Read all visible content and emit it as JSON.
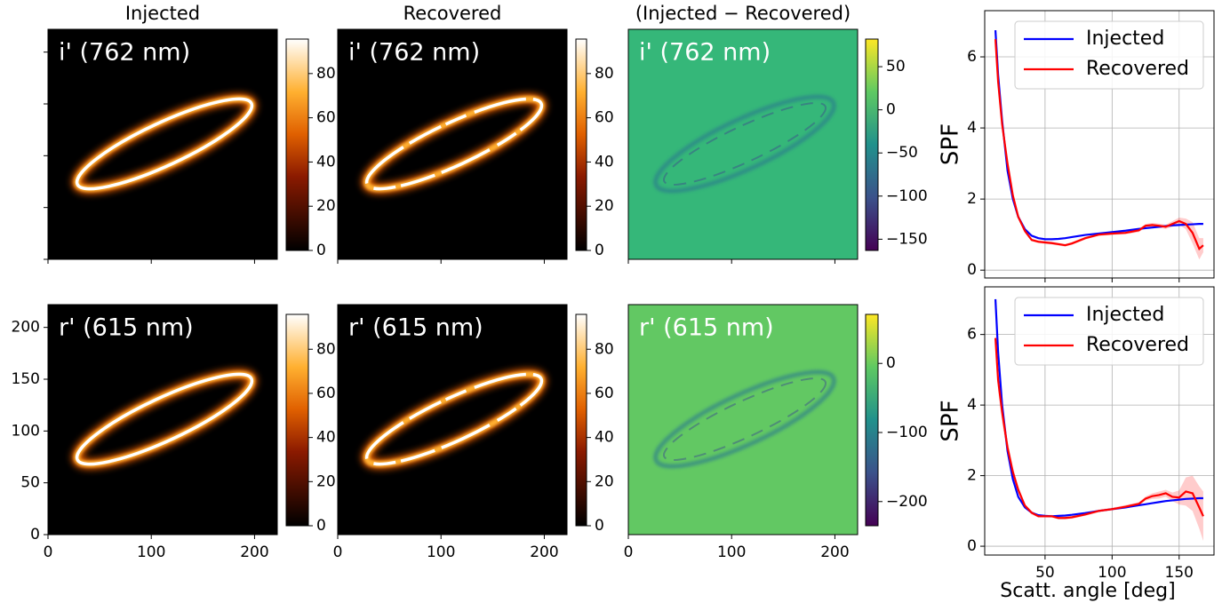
{
  "chart_data": [
    {
      "type": "image",
      "title": "Injected",
      "label": "i' (762 nm)",
      "colormap": "afmhot",
      "xlim": [
        0,
        222
      ],
      "ylim": [
        0,
        222
      ],
      "colorbar": {
        "lim": [
          0,
          95.6
        ],
        "ticks": [
          0,
          20,
          40,
          60,
          80
        ]
      }
    },
    {
      "type": "image",
      "title": "Recovered",
      "label": "i' (762 nm)",
      "colormap": "afmhot",
      "xlim": [
        0,
        222
      ],
      "ylim": [
        0,
        222
      ],
      "colorbar": {
        "lim": [
          0,
          95.6
        ],
        "ticks": [
          0,
          20,
          40,
          60,
          80
        ]
      }
    },
    {
      "type": "image",
      "title": "(Injected − Recovered)",
      "label": "i' (762 nm)",
      "colormap": "viridis",
      "xlim": [
        0,
        222
      ],
      "ylim": [
        0,
        222
      ],
      "colorbar": {
        "lim": [
          -163,
          82
        ],
        "ticks": [
          {
            "value": -150,
            "label": "−150"
          },
          {
            "value": -100,
            "label": "−100"
          },
          {
            "value": -50,
            "label": "−50"
          },
          0,
          50
        ]
      }
    },
    {
      "type": "line",
      "ylabel": "SPF",
      "x": [
        13,
        15,
        18,
        22,
        26,
        30,
        35,
        40,
        45,
        50,
        55,
        60,
        65,
        70,
        80,
        90,
        100,
        110,
        120,
        125,
        130,
        135,
        140,
        145,
        150,
        155,
        160,
        165,
        168
      ],
      "series": [
        {
          "name": "Injected",
          "color": "#0000ff",
          "values": [
            6.75,
            5.5,
            4.2,
            2.8,
            2.0,
            1.5,
            1.15,
            0.97,
            0.9,
            0.87,
            0.87,
            0.88,
            0.9,
            0.93,
            0.99,
            1.03,
            1.07,
            1.11,
            1.16,
            1.18,
            1.2,
            1.22,
            1.24,
            1.26,
            1.27,
            1.28,
            1.29,
            1.3,
            1.3
          ]
        },
        {
          "name": "Recovered",
          "color": "#ff0000",
          "values": [
            6.5,
            5.3,
            4.1,
            3.0,
            2.1,
            1.5,
            1.1,
            0.85,
            0.8,
            0.78,
            0.76,
            0.73,
            0.7,
            0.75,
            0.9,
            1.0,
            1.03,
            1.05,
            1.12,
            1.25,
            1.27,
            1.25,
            1.22,
            1.3,
            1.38,
            1.3,
            1.05,
            0.6,
            0.7
          ],
          "error": [
            0.15,
            0.15,
            0.1,
            0.1,
            0.08,
            0.05,
            0.05,
            0.04,
            0.04,
            0.04,
            0.04,
            0.04,
            0.04,
            0.04,
            0.04,
            0.04,
            0.04,
            0.04,
            0.05,
            0.05,
            0.06,
            0.06,
            0.06,
            0.08,
            0.1,
            0.15,
            0.3,
            0.3,
            0.2
          ]
        }
      ],
      "xlim": [
        5,
        176
      ],
      "ylim": [
        -0.22,
        7.3
      ],
      "yticks": [
        0,
        2,
        4,
        6
      ],
      "grid": true,
      "legend": "upper right"
    },
    {
      "type": "image",
      "label": "r' (615 nm)",
      "colormap": "afmhot",
      "xlim": [
        0,
        222
      ],
      "ylim": [
        0,
        222
      ],
      "xticks": [
        0,
        100,
        200
      ],
      "yticks": [
        0,
        50,
        100,
        150,
        200
      ],
      "colorbar": {
        "lim": [
          0,
          95.8
        ],
        "ticks": [
          0,
          20,
          40,
          60,
          80
        ]
      }
    },
    {
      "type": "image",
      "label": "r' (615 nm)",
      "colormap": "afmhot",
      "xlim": [
        0,
        222
      ],
      "ylim": [
        0,
        222
      ],
      "xticks": [
        0,
        100,
        200
      ],
      "colorbar": {
        "lim": [
          0,
          95.8
        ],
        "ticks": [
          0,
          20,
          40,
          60,
          80
        ]
      }
    },
    {
      "type": "image",
      "label": "r' (615 nm)",
      "colormap": "viridis",
      "xlim": [
        0,
        222
      ],
      "ylim": [
        0,
        222
      ],
      "xticks": [
        0,
        100,
        200
      ],
      "colorbar": {
        "lim": [
          -235,
          71
        ],
        "ticks": [
          {
            "value": -200,
            "label": "−200"
          },
          {
            "value": -100,
            "label": "−100"
          },
          0
        ]
      }
    },
    {
      "type": "line",
      "ylabel": "SPF",
      "xlabel": "Scatt. angle [deg]",
      "x": [
        13,
        15,
        18,
        22,
        26,
        30,
        35,
        40,
        45,
        50,
        55,
        60,
        65,
        70,
        80,
        90,
        100,
        110,
        120,
        125,
        130,
        135,
        140,
        145,
        150,
        155,
        160,
        165,
        168
      ],
      "series": [
        {
          "name": "Injected",
          "color": "#0000ff",
          "values": [
            7.0,
            5.5,
            4.0,
            2.7,
            1.9,
            1.4,
            1.1,
            0.95,
            0.88,
            0.86,
            0.85,
            0.86,
            0.87,
            0.89,
            0.94,
            1.0,
            1.05,
            1.1,
            1.16,
            1.19,
            1.22,
            1.25,
            1.28,
            1.3,
            1.32,
            1.34,
            1.35,
            1.36,
            1.36
          ]
        },
        {
          "name": "Recovered",
          "color": "#ff0000",
          "values": [
            5.9,
            4.7,
            3.8,
            2.8,
            2.1,
            1.6,
            1.15,
            0.95,
            0.85,
            0.85,
            0.85,
            0.8,
            0.8,
            0.82,
            0.9,
            1.0,
            1.05,
            1.12,
            1.2,
            1.35,
            1.42,
            1.45,
            1.5,
            1.4,
            1.38,
            1.55,
            1.5,
            1.1,
            0.85
          ],
          "error": [
            0.2,
            0.3,
            0.3,
            0.2,
            0.15,
            0.1,
            0.05,
            0.05,
            0.04,
            0.04,
            0.04,
            0.04,
            0.04,
            0.04,
            0.04,
            0.04,
            0.04,
            0.05,
            0.05,
            0.06,
            0.08,
            0.1,
            0.1,
            0.12,
            0.2,
            0.4,
            0.5,
            0.6,
            0.7
          ]
        }
      ],
      "xlim": [
        5,
        176
      ],
      "ylim": [
        -0.25,
        7.35
      ],
      "xticks": [
        50,
        100,
        150
      ],
      "yticks": [
        0,
        2,
        4,
        6
      ],
      "grid": true,
      "legend": "upper right"
    }
  ]
}
